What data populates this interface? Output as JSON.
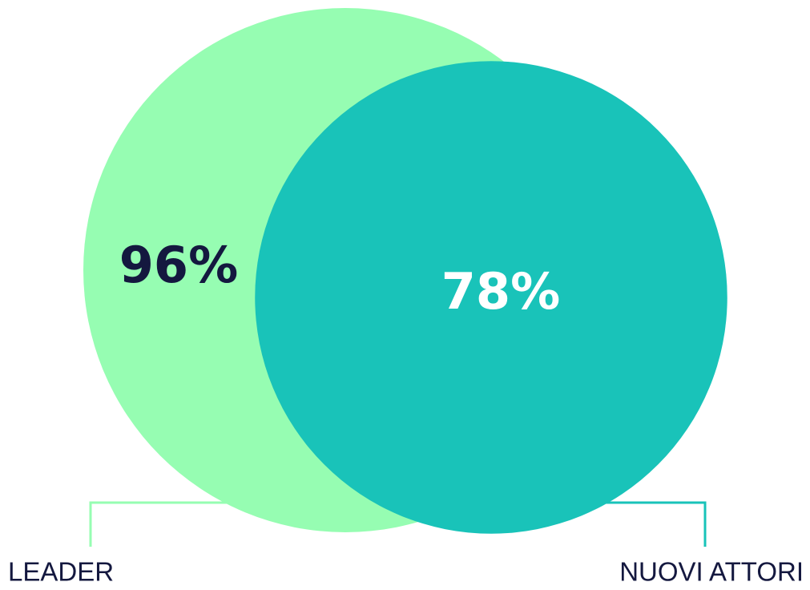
{
  "chart_data": {
    "type": "venn",
    "categories": [
      "LEADER",
      "NUOVI ATTORI"
    ],
    "values": [
      96,
      78
    ],
    "value_labels": [
      "96%",
      "78%"
    ],
    "colors": [
      "#96fdb2",
      "#19c3b9"
    ],
    "label_colors": [
      "#14183f",
      "#ffffff"
    ]
  }
}
